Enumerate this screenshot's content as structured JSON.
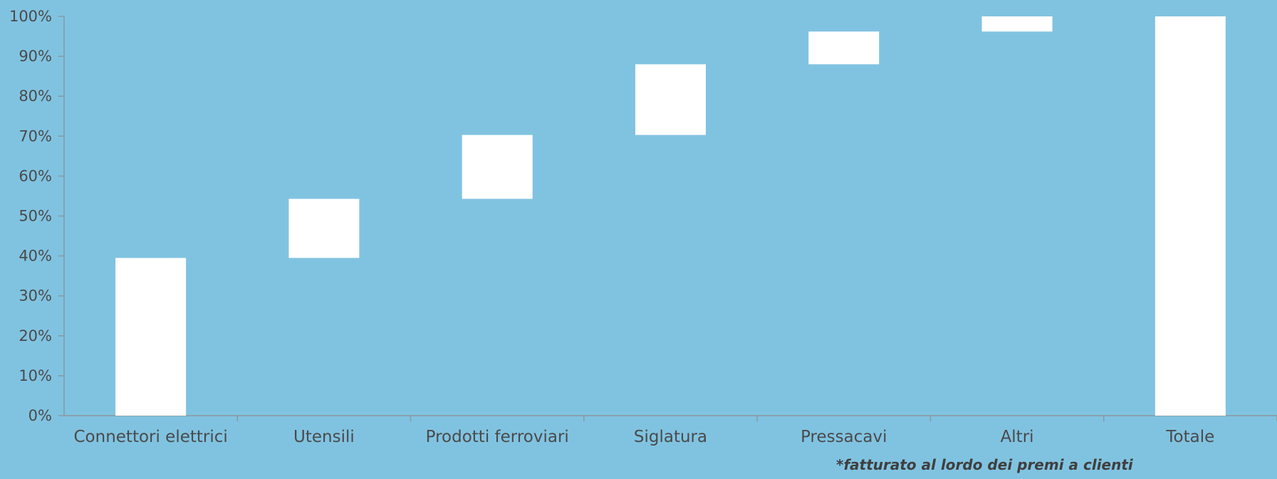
{
  "chart_data": {
    "type": "bar",
    "subtype": "waterfall",
    "categories": [
      "Connettori elettrici",
      "Utensili",
      "Prodotti ferroviari",
      "Siglatura",
      "Pressacavi",
      "Altri",
      "Totale"
    ],
    "series": [
      {
        "values": [
          [
            0,
            39.5
          ],
          [
            39.5,
            54.3
          ],
          [
            54.3,
            70.3
          ],
          [
            70.3,
            88.0
          ],
          [
            88.0,
            96.2
          ],
          [
            96.2,
            100
          ],
          [
            0,
            100
          ]
        ]
      }
    ],
    "yticks": [
      "0%",
      "10%",
      "20%",
      "30%",
      "40%",
      "50%",
      "60%",
      "70%",
      "80%",
      "90%",
      "100%"
    ],
    "ylim": [
      0,
      100
    ],
    "grid": false,
    "legend": false,
    "colors": {
      "background": "#80c3e1",
      "bar": "#ffffff",
      "axis": "#8a98a0",
      "text": "#4a4a4a"
    }
  },
  "footnote": "*fatturato al lordo dei premi a clienti"
}
